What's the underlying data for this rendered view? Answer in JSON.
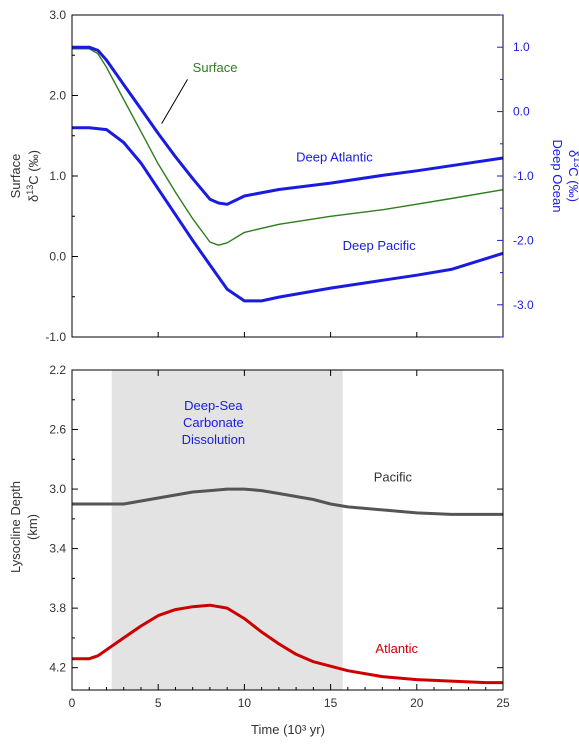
{
  "chart_data": [
    {
      "type": "line",
      "xlim": [
        0,
        25
      ],
      "ylim": [
        -1.0,
        3.0
      ],
      "y2lim": [
        -3.5,
        1.5
      ],
      "ylabel_line1": "Surface",
      "ylabel_line2": "δ13C (‰)",
      "y2label_line1": "Deep Ocean",
      "y2label_line2": "δ13C (‰)",
      "yticks": [
        -1.0,
        0.0,
        1.0,
        2.0,
        3.0
      ],
      "ytick_labels": [
        "-1.0",
        "0.0",
        "1.0",
        "2.0",
        "3.0"
      ],
      "y2ticks": [
        -3.0,
        -2.0,
        -1.0,
        0.0,
        1.0
      ],
      "y2tick_labels": [
        "-3.0",
        "-2.0",
        "-1.0",
        "0.0",
        "1.0"
      ],
      "colors": {
        "surface": "#2e7d1e",
        "deep": "#1a1ae0",
        "axis_right": "#1a1ae0"
      },
      "series": [
        {
          "name": "Surface",
          "axis": "left",
          "color": "#2e7d1e",
          "x": [
            0,
            1,
            1.5,
            2,
            3,
            4,
            5,
            6,
            7,
            8,
            8.5,
            9,
            10,
            12,
            15,
            18,
            20,
            22,
            25
          ],
          "y": [
            2.58,
            2.58,
            2.52,
            2.35,
            1.95,
            1.55,
            1.15,
            0.8,
            0.47,
            0.18,
            0.14,
            0.17,
            0.3,
            0.4,
            0.5,
            0.58,
            0.65,
            0.72,
            0.83
          ]
        },
        {
          "name": "Deep Atlantic",
          "axis": "right",
          "color": "#1a1ae0",
          "x": [
            0,
            1,
            1.5,
            2,
            3,
            4,
            5,
            6,
            7,
            8,
            8.5,
            9,
            10,
            12,
            15,
            18,
            20,
            22,
            25
          ],
          "y": [
            1.0,
            1.0,
            0.95,
            0.8,
            0.42,
            0.04,
            -0.34,
            -0.7,
            -1.04,
            -1.36,
            -1.42,
            -1.44,
            -1.31,
            -1.21,
            -1.11,
            -0.99,
            -0.92,
            -0.84,
            -0.72
          ]
        },
        {
          "name": "Deep Pacific",
          "axis": "right",
          "color": "#1a1ae0",
          "x": [
            0,
            1,
            2,
            3,
            4,
            5,
            6,
            7,
            8,
            9,
            10,
            11,
            12,
            15,
            18,
            20,
            22,
            25
          ],
          "y": [
            -0.25,
            -0.25,
            -0.28,
            -0.48,
            -0.8,
            -1.2,
            -1.6,
            -2.0,
            -2.38,
            -2.76,
            -2.94,
            -2.94,
            -2.88,
            -2.74,
            -2.62,
            -2.54,
            -2.45,
            -2.2
          ]
        }
      ],
      "annotations": [
        {
          "text": "Surface",
          "color": "#2e7d1e",
          "x": 7.0,
          "y": 2.29,
          "axis": "left"
        },
        {
          "text": "Deep Atlantic",
          "color": "#1a1ae0",
          "x": 13.0,
          "y": 1.18,
          "axis": "left"
        },
        {
          "text": "Deep Pacific",
          "color": "#1a1ae0",
          "x": 15.7,
          "y": 0.08,
          "axis": "left"
        }
      ]
    },
    {
      "type": "line",
      "xlim": [
        0,
        25
      ],
      "ylim": [
        4.35,
        2.2
      ],
      "xlabel": "Time (10³ yr)",
      "ylabel_line1": "Lysocline Depth",
      "ylabel_line2": "(km)",
      "xticks": [
        0,
        5,
        10,
        15,
        20,
        25
      ],
      "xtick_labels": [
        "0",
        "5",
        "10",
        "15",
        "20",
        "25"
      ],
      "yticks": [
        2.2,
        2.6,
        3.0,
        3.4,
        3.8,
        4.2
      ],
      "ytick_labels": [
        "2.2",
        "2.6",
        "3.0",
        "3.4",
        "3.8",
        "4.2"
      ],
      "shaded_region": {
        "x_start": 2.3,
        "x_end": 15.7,
        "label_lines": [
          "Deep-Sea",
          "Carbonate",
          "Dissolution"
        ],
        "color": "#e3e3e3"
      },
      "colors": {
        "pacific": "#555555",
        "atlantic": "#cc0000",
        "shade_label": "#1a1ae0"
      },
      "series": [
        {
          "name": "Pacific",
          "color": "#555555",
          "x": [
            0,
            1,
            2,
            3,
            4,
            5,
            6,
            7,
            8,
            9,
            10,
            11,
            12,
            13,
            14,
            15,
            16,
            18,
            20,
            22,
            25
          ],
          "y": [
            3.1,
            3.1,
            3.1,
            3.1,
            3.08,
            3.06,
            3.04,
            3.02,
            3.01,
            3.0,
            3.0,
            3.01,
            3.03,
            3.05,
            3.07,
            3.1,
            3.12,
            3.14,
            3.16,
            3.17,
            3.17
          ]
        },
        {
          "name": "Atlantic",
          "color": "#cc0000",
          "x": [
            0,
            1,
            1.5,
            2,
            3,
            4,
            5,
            6,
            7,
            8,
            9,
            10,
            11,
            12,
            13,
            14,
            15,
            16,
            18,
            20,
            22,
            24,
            25
          ],
          "y": [
            4.14,
            4.14,
            4.12,
            4.08,
            4.0,
            3.92,
            3.85,
            3.81,
            3.79,
            3.78,
            3.8,
            3.87,
            3.96,
            4.04,
            4.11,
            4.16,
            4.19,
            4.22,
            4.26,
            4.28,
            4.29,
            4.3,
            4.3
          ]
        }
      ],
      "annotations": [
        {
          "text": "Pacific",
          "color": "#333333",
          "x": 17.5,
          "y": 2.95
        },
        {
          "text": "Atlantic",
          "color": "#cc0000",
          "x": 17.6,
          "y": 4.1
        }
      ]
    }
  ]
}
